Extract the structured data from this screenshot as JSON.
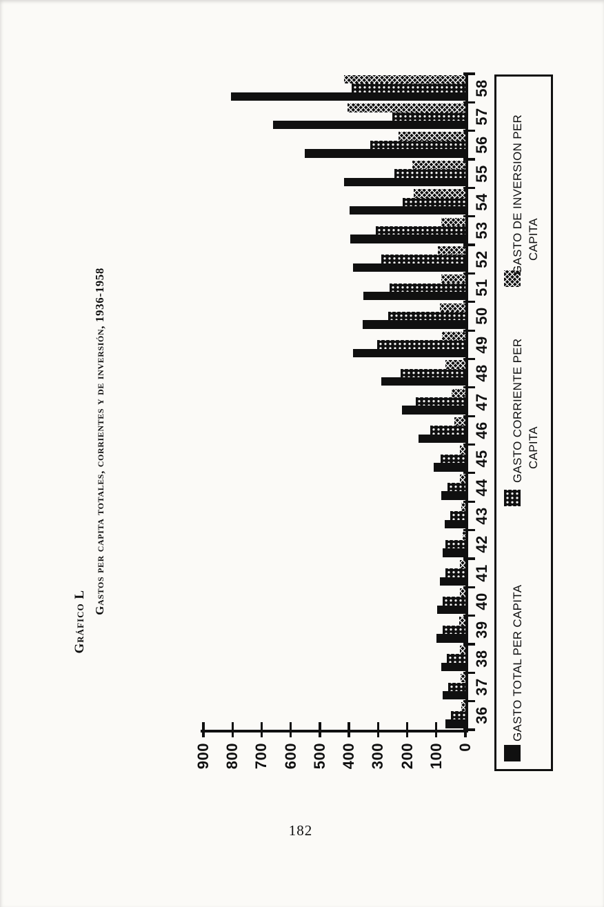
{
  "page": {
    "number": "182",
    "paper_color": "#fbfaf7",
    "ink_color": "#101010"
  },
  "title": {
    "kicker": "Gráfico L",
    "main": "Gastos per capita totales, corrientes y de inversión, 1936-1958"
  },
  "legend": {
    "items": [
      {
        "key": "total",
        "pattern": "solid",
        "lines": [
          "GASTO TOTAL PER CAPITA",
          ""
        ]
      },
      {
        "key": "corriente",
        "pattern": "dotted",
        "lines": [
          "GASTO CORRIENTE PER",
          "CAPITA"
        ]
      },
      {
        "key": "inversion",
        "pattern": "cross",
        "lines": [
          "GASTO DE INVERSION PER",
          "CAPITA"
        ]
      }
    ]
  },
  "chart_data": {
    "type": "bar",
    "title": "Gráfico L — Gastos per capita totales, corrientes y de inversión, 1936-1958",
    "orientation": "chart printed rotated 90° counterclockwise on the page; rotate clockwise to read (years on bottom, values on left)",
    "categories": [
      "36",
      "37",
      "38",
      "39",
      "40",
      "41",
      "42",
      "43",
      "44",
      "45",
      "46",
      "47",
      "48",
      "49",
      "50",
      "51",
      "52",
      "53",
      "54",
      "55",
      "56",
      "57",
      "58"
    ],
    "series": [
      {
        "key": "total",
        "name": "GASTO TOTAL PER CAPITA",
        "pattern": "solid",
        "values": [
          68,
          78,
          82,
          100,
          96,
          88,
          78,
          72,
          84,
          109,
          162,
          218,
          290,
          385,
          352,
          350,
          386,
          395,
          399,
          416,
          552,
          660,
          806
        ]
      },
      {
        "key": "corriente",
        "name": "GASTO CORRIENTE PER CAPITA",
        "pattern": "dotted",
        "values": [
          50,
          60,
          65,
          78,
          77,
          69,
          68,
          52,
          61,
          86,
          121,
          170,
          222,
          302,
          266,
          260,
          289,
          308,
          216,
          245,
          328,
          251,
          390
        ]
      },
      {
        "key": "inversion",
        "name": "GASTO DE INVERSION PER CAPITA",
        "pattern": "cross",
        "values": [
          15,
          17,
          18,
          21,
          19,
          18,
          10,
          14,
          20,
          20,
          38,
          48,
          68,
          80,
          88,
          84,
          95,
          84,
          178,
          183,
          230,
          404,
          416
        ]
      }
    ],
    "value_axis": {
      "min": 0,
      "max": 900,
      "step": 100,
      "tick_labels": [
        "0",
        "100",
        "200",
        "300",
        "400",
        "500",
        "600",
        "700",
        "800",
        "900"
      ]
    },
    "xlabel": "",
    "ylabel": "",
    "ylim": [
      0,
      900
    ],
    "grid": false,
    "legend_position": "beside category axis (bottom of chart when viewed upright)"
  }
}
